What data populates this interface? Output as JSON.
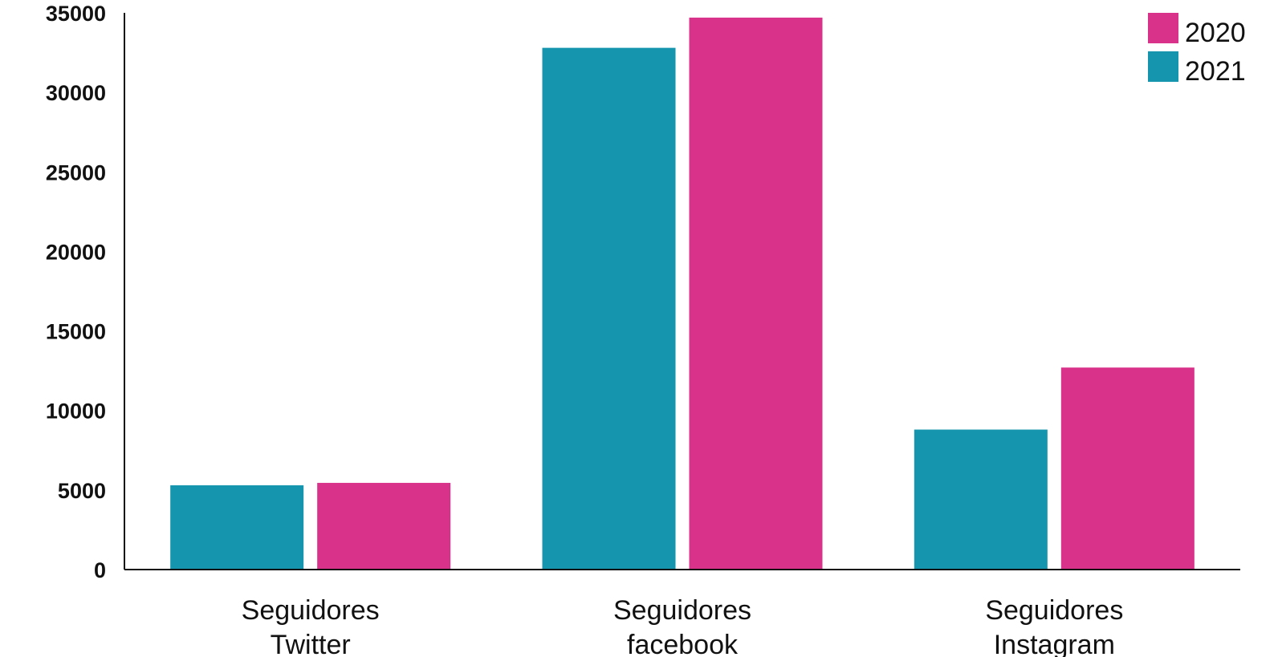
{
  "chart_data": {
    "type": "bar",
    "categories": [
      [
        "Seguidores",
        "Twitter"
      ],
      [
        "Seguidores",
        "facebook"
      ],
      [
        "Seguidores",
        "Instagram"
      ]
    ],
    "series": [
      {
        "name": "2021",
        "color": "#1596AE",
        "values": [
          5300,
          32800,
          8800
        ]
      },
      {
        "name": "2020",
        "color": "#D9328A",
        "values": [
          5450,
          34700,
          12700
        ]
      }
    ],
    "legend_order": [
      "2020",
      "2021"
    ],
    "legend_position": "top-right",
    "ylim": [
      0,
      35000
    ],
    "yticks": [
      "0",
      "5000",
      "10000",
      "15000",
      "20000",
      "25000",
      "30000",
      "35000"
    ],
    "grid": false,
    "title": "",
    "xlabel": "",
    "ylabel": ""
  }
}
